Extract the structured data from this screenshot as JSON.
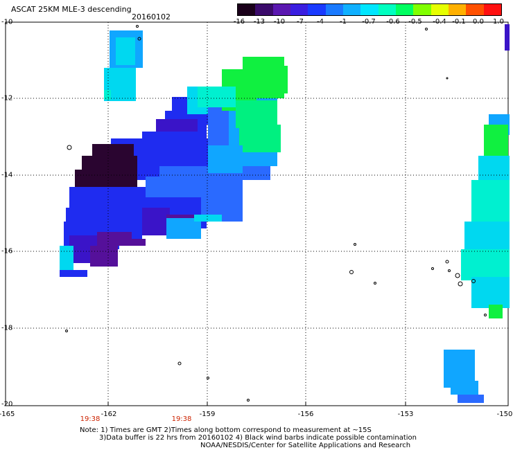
{
  "header": {
    "title": "ASCAT 25KM MLE-3 descending",
    "date": "20160102"
  },
  "colorbar": {
    "labels": [
      "-16",
      "-13",
      "-10",
      "-7",
      "-4",
      "-1",
      "-0.7",
      "-0.6",
      "-0.5",
      "-0.4",
      "-0.1",
      "0.0",
      "1.0"
    ],
    "colors": [
      "#1a001a",
      "#3a0a6a",
      "#5a17b0",
      "#3a1ee0",
      "#1a3aff",
      "#1a7aff",
      "#10b0ff",
      "#00e6ff",
      "#00ffc0",
      "#00ff60",
      "#80ff00",
      "#e6ff00",
      "#ffb000",
      "#ff5000",
      "#ff1010"
    ]
  },
  "axes": {
    "y_labels": [
      "-10",
      "-12",
      "-14",
      "-16",
      "-18",
      "-20"
    ],
    "x_labels": [
      "-165",
      "-162",
      "-159",
      "-156",
      "-153",
      "-150"
    ],
    "x_range": [
      -165,
      -150
    ],
    "y_range": [
      -20,
      -10
    ]
  },
  "times": [
    "19:38",
    "19:38"
  ],
  "notes": [
    "Note: 1) Times are GMT 2)Times along bottom correspond to measurement at ~15S",
    "3)Data buffer is 22 hrs from 20160102 4) Black wind barbs indicate possible contamination",
    "NOAA/NESDIS/Center for Satellite Applications and Research"
  ],
  "map_colors": {
    "dark": "#2a0530",
    "purple": "#55109a",
    "violet": "#3a14c8",
    "blue": "#1f2cf0",
    "mid_blue": "#2a6aff",
    "azure": "#10a6ff",
    "cyan": "#00d8f0",
    "aqua": "#00f0d0",
    "green": "#00f080",
    "lime": "#10f040"
  }
}
